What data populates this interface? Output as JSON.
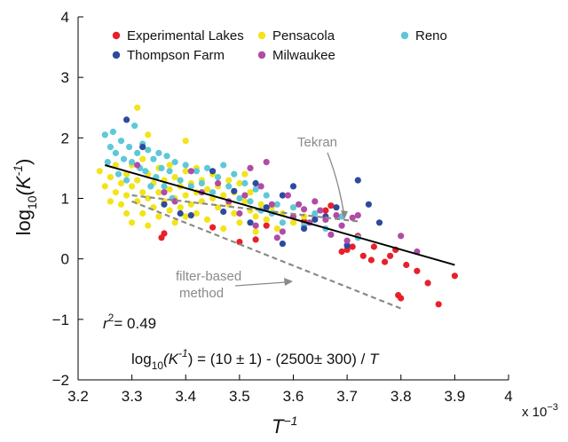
{
  "chart_data": {
    "type": "scatter",
    "title": "",
    "xlabel": "T",
    "xlabel_sup": "−1",
    "ylabel_main": "log",
    "ylabel_sub": "10",
    "ylabel_open": "(K",
    "ylabel_sup": "-1",
    "ylabel_close": ")",
    "x_multiplier": "x 10",
    "x_multiplier_exp": "−3",
    "xlim": [
      3.2,
      4.0
    ],
    "ylim": [
      -2,
      4
    ],
    "xticks": [
      "3.2",
      "3.3",
      "3.4",
      "3.5",
      "3.6",
      "3.7",
      "3.8",
      "3.9",
      "4"
    ],
    "xtick_values": [
      3.2,
      3.3,
      3.4,
      3.5,
      3.6,
      3.7,
      3.8,
      3.9,
      4.0
    ],
    "yticks": [
      "4",
      "3",
      "2",
      "1",
      "0",
      "−1",
      "−2"
    ],
    "ytick_values": [
      4,
      3,
      2,
      1,
      0,
      -1,
      -2
    ],
    "grid": false,
    "legend_position": "top",
    "legend": [
      {
        "name": "Experimental Lakes",
        "color": "#e8202a"
      },
      {
        "name": "Pensacola",
        "color": "#f2e41a"
      },
      {
        "name": "Reno",
        "color": "#5ec8d8"
      },
      {
        "name": "Thompson Farm",
        "color": "#2e4a9e"
      },
      {
        "name": "Milwaukee",
        "color": "#b04ba6"
      }
    ],
    "series": [
      {
        "name": "Experimental Lakes",
        "color": "#e8202a",
        "points": [
          [
            3.355,
            0.35
          ],
          [
            3.36,
            0.42
          ],
          [
            3.45,
            0.52
          ],
          [
            3.5,
            0.28
          ],
          [
            3.53,
            0.32
          ],
          [
            3.55,
            0.55
          ],
          [
            3.62,
            0.62
          ],
          [
            3.66,
            0.8
          ],
          [
            3.67,
            0.88
          ],
          [
            3.69,
            0.12
          ],
          [
            3.7,
            0.15
          ],
          [
            3.71,
            0.2
          ],
          [
            3.72,
            0.38
          ],
          [
            3.73,
            0.05
          ],
          [
            3.745,
            -0.02
          ],
          [
            3.75,
            0.2
          ],
          [
            3.77,
            -0.05
          ],
          [
            3.78,
            0.05
          ],
          [
            3.79,
            0.15
          ],
          [
            3.795,
            -0.6
          ],
          [
            3.8,
            -0.65
          ],
          [
            3.81,
            -0.1
          ],
          [
            3.83,
            -0.2
          ],
          [
            3.85,
            -0.4
          ],
          [
            3.87,
            -0.75
          ],
          [
            3.9,
            -0.28
          ]
        ]
      },
      {
        "name": "Pensacola",
        "color": "#f2e41a",
        "points": [
          [
            3.24,
            1.45
          ],
          [
            3.25,
            1.2
          ],
          [
            3.26,
            1.35
          ],
          [
            3.26,
            0.95
          ],
          [
            3.27,
            1.1
          ],
          [
            3.27,
            1.55
          ],
          [
            3.28,
            1.25
          ],
          [
            3.28,
            0.9
          ],
          [
            3.29,
            1.4
          ],
          [
            3.29,
            1.05
          ],
          [
            3.29,
            0.75
          ],
          [
            3.3,
            1.2
          ],
          [
            3.3,
            0.6
          ],
          [
            3.3,
            1.55
          ],
          [
            3.31,
            1.3
          ],
          [
            3.31,
            0.95
          ],
          [
            3.31,
            2.5
          ],
          [
            3.32,
            1.1
          ],
          [
            3.32,
            0.75
          ],
          [
            3.32,
            1.65
          ],
          [
            3.33,
            1.4
          ],
          [
            3.33,
            1.0
          ],
          [
            3.33,
            2.05
          ],
          [
            3.33,
            0.55
          ],
          [
            3.34,
            1.25
          ],
          [
            3.34,
            0.85
          ],
          [
            3.35,
            1.5
          ],
          [
            3.35,
            1.1
          ],
          [
            3.35,
            0.7
          ],
          [
            3.36,
            1.3
          ],
          [
            3.36,
            0.95
          ],
          [
            3.37,
            1.55
          ],
          [
            3.37,
            1.15
          ],
          [
            3.37,
            0.8
          ],
          [
            3.38,
            1.35
          ],
          [
            3.38,
            1.0
          ],
          [
            3.38,
            0.6
          ],
          [
            3.39,
            1.2
          ],
          [
            3.39,
            0.85
          ],
          [
            3.4,
            1.45
          ],
          [
            3.4,
            1.05
          ],
          [
            3.4,
            0.7
          ],
          [
            3.4,
            1.95
          ],
          [
            3.41,
            1.25
          ],
          [
            3.41,
            0.9
          ],
          [
            3.42,
            1.5
          ],
          [
            3.42,
            1.1
          ],
          [
            3.42,
            0.75
          ],
          [
            3.43,
            1.3
          ],
          [
            3.43,
            0.95
          ],
          [
            3.44,
            1.15
          ],
          [
            3.44,
            0.65
          ],
          [
            3.45,
            1.4
          ],
          [
            3.45,
            1.0
          ],
          [
            3.46,
            1.2
          ],
          [
            3.46,
            0.85
          ],
          [
            3.47,
            1.05
          ],
          [
            3.47,
            0.5
          ],
          [
            3.48,
            1.3
          ],
          [
            3.48,
            0.9
          ],
          [
            3.49,
            1.1
          ],
          [
            3.49,
            0.75
          ],
          [
            3.5,
            1.25
          ],
          [
            3.5,
            0.6
          ],
          [
            3.51,
            0.95
          ],
          [
            3.51,
            1.4
          ],
          [
            3.52,
            0.8
          ],
          [
            3.52,
            1.1
          ],
          [
            3.53,
            0.7
          ],
          [
            3.53,
            0.45
          ],
          [
            3.54,
            0.9
          ],
          [
            3.55,
            0.65
          ],
          [
            3.56,
            0.85
          ],
          [
            3.57,
            0.5
          ],
          [
            3.58,
            0.75
          ],
          [
            3.6,
            0.6
          ],
          [
            3.62,
            0.7
          ]
        ]
      },
      {
        "name": "Reno",
        "color": "#5ec8d8",
        "points": [
          [
            3.25,
            2.05
          ],
          [
            3.255,
            1.6
          ],
          [
            3.26,
            1.85
          ],
          [
            3.265,
            2.1
          ],
          [
            3.27,
            1.75
          ],
          [
            3.275,
            1.4
          ],
          [
            3.28,
            1.95
          ],
          [
            3.285,
            1.65
          ],
          [
            3.29,
            1.3
          ],
          [
            3.295,
            1.85
          ],
          [
            3.3,
            1.6
          ],
          [
            3.305,
            2.2
          ],
          [
            3.31,
            1.75
          ],
          [
            3.315,
            1.5
          ],
          [
            3.32,
            1.9
          ],
          [
            3.325,
            1.45
          ],
          [
            3.33,
            1.8
          ],
          [
            3.335,
            1.2
          ],
          [
            3.34,
            1.65
          ],
          [
            3.345,
            1.35
          ],
          [
            3.35,
            1.75
          ],
          [
            3.355,
            1.5
          ],
          [
            3.36,
            1.2
          ],
          [
            3.365,
            1.7
          ],
          [
            3.37,
            1.45
          ],
          [
            3.375,
            1.0
          ],
          [
            3.38,
            1.6
          ],
          [
            3.39,
            1.3
          ],
          [
            3.4,
            1.55
          ],
          [
            3.41,
            1.2
          ],
          [
            3.42,
            1.45
          ],
          [
            3.43,
            1.25
          ],
          [
            3.44,
            1.5
          ],
          [
            3.45,
            1.1
          ],
          [
            3.46,
            1.35
          ],
          [
            3.47,
            1.55
          ],
          [
            3.48,
            1.2
          ],
          [
            3.49,
            1.4
          ],
          [
            3.5,
            1.0
          ],
          [
            3.51,
            1.25
          ],
          [
            3.52,
            0.95
          ],
          [
            3.53,
            1.15
          ],
          [
            3.54,
            0.8
          ],
          [
            3.55,
            1.05
          ],
          [
            3.56,
            0.75
          ],
          [
            3.57,
            0.9
          ],
          [
            3.58,
            0.6
          ],
          [
            3.6,
            0.85
          ],
          [
            3.62,
            0.55
          ],
          [
            3.64,
            0.75
          ],
          [
            3.66,
            0.5
          ],
          [
            3.69,
            0.7
          ],
          [
            3.72,
            0.35
          ]
        ]
      },
      {
        "name": "Thompson Farm",
        "color": "#2e4a9e",
        "points": [
          [
            3.29,
            2.3
          ],
          [
            3.32,
            1.85
          ],
          [
            3.36,
            0.9
          ],
          [
            3.39,
            0.75
          ],
          [
            3.41,
            0.72
          ],
          [
            3.45,
            1.45
          ],
          [
            3.47,
            0.78
          ],
          [
            3.49,
            1.12
          ],
          [
            3.52,
            0.6
          ],
          [
            3.53,
            1.25
          ],
          [
            3.55,
            0.85
          ],
          [
            3.58,
            1.05
          ],
          [
            3.6,
            1.2
          ],
          [
            3.62,
            0.5
          ],
          [
            3.64,
            0.65
          ],
          [
            3.66,
            0.7
          ],
          [
            3.68,
            0.85
          ],
          [
            3.7,
            0.22
          ],
          [
            3.72,
            1.3
          ],
          [
            3.74,
            0.9
          ],
          [
            3.76,
            0.6
          ],
          [
            3.58,
            0.25
          ]
        ]
      },
      {
        "name": "Milwaukee",
        "color": "#b04ba6",
        "points": [
          [
            3.31,
            1.55
          ],
          [
            3.36,
            1.1
          ],
          [
            3.38,
            0.95
          ],
          [
            3.41,
            1.45
          ],
          [
            3.43,
            1.1
          ],
          [
            3.46,
            1.25
          ],
          [
            3.48,
            0.95
          ],
          [
            3.5,
            0.75
          ],
          [
            3.51,
            1.05
          ],
          [
            3.52,
            1.5
          ],
          [
            3.53,
            0.55
          ],
          [
            3.54,
            1.2
          ],
          [
            3.55,
            1.6
          ],
          [
            3.56,
            0.9
          ],
          [
            3.57,
            0.35
          ],
          [
            3.58,
            0.45
          ],
          [
            3.59,
            1.05
          ],
          [
            3.6,
            0.7
          ],
          [
            3.61,
            0.9
          ],
          [
            3.62,
            0.82
          ],
          [
            3.63,
            0.6
          ],
          [
            3.64,
            0.95
          ],
          [
            3.65,
            0.8
          ],
          [
            3.66,
            0.65
          ],
          [
            3.67,
            0.4
          ],
          [
            3.68,
            0.72
          ],
          [
            3.69,
            0.55
          ],
          [
            3.7,
            0.3
          ],
          [
            3.71,
            0.68
          ],
          [
            3.72,
            0.72
          ],
          [
            3.8,
            0.38
          ],
          [
            3.83,
            0.12
          ]
        ]
      }
    ],
    "fit_line": {
      "x": [
        3.25,
        3.9
      ],
      "y": [
        1.55,
        -0.1
      ],
      "color": "#000000"
    },
    "tekran_line": {
      "x": [
        3.3,
        3.72
      ],
      "y": [
        1.05,
        0.62
      ],
      "color": "#8a8a8a"
    },
    "filter_line": {
      "x": [
        3.3,
        3.8
      ],
      "y": [
        0.95,
        -0.82
      ],
      "color": "#8a8a8a"
    },
    "annotations": {
      "tekran": "Tekran",
      "filter_line1": "filter-based",
      "filter_line2": "method",
      "r2_prefix": "r",
      "r2_sup": "2",
      "r2_value": "= 0.49",
      "eq_prefix": "log",
      "eq_sub": "10",
      "eq_k": "(K",
      "eq_sup": "-1",
      "eq_rest": ") = (10 ± 1) - (2500± 300) / ",
      "eq_t": "T"
    }
  }
}
